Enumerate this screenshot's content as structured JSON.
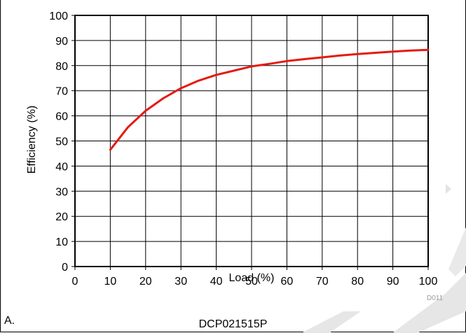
{
  "chart_data": {
    "type": "line",
    "title": "",
    "xlabel": "Load (%)",
    "ylabel": "Efficiency (%)",
    "xlim": [
      0,
      100
    ],
    "ylim": [
      0,
      100
    ],
    "xticks": [
      0,
      10,
      20,
      30,
      40,
      50,
      60,
      70,
      80,
      90,
      100
    ],
    "yticks": [
      0,
      10,
      20,
      30,
      40,
      50,
      60,
      70,
      80,
      90,
      100
    ],
    "grid": true,
    "series": [
      {
        "color": "#e41b13",
        "x": [
          10,
          15,
          20,
          25,
          30,
          35,
          40,
          45,
          50,
          55,
          60,
          65,
          70,
          75,
          80,
          85,
          90,
          95,
          100
        ],
        "y": [
          46.5,
          55.5,
          62,
          67,
          71,
          74,
          76.3,
          78,
          79.7,
          80.7,
          81.8,
          82.6,
          83.3,
          84,
          84.6,
          85.1,
          85.6,
          86,
          86.3
        ]
      }
    ]
  },
  "panel_label": "A.",
  "caption": "DCP021515P",
  "figure_id": "D011"
}
